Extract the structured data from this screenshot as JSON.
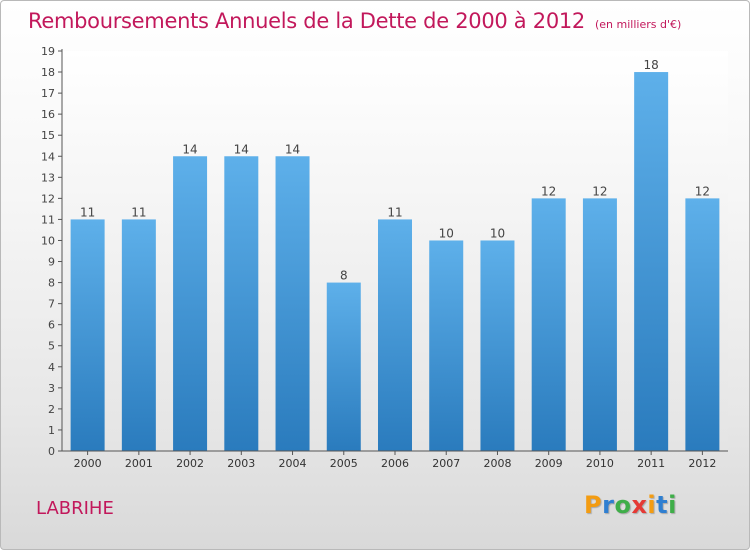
{
  "title": "Remboursements Annuels de la Dette de 2000 à 2012",
  "unit": "(en milliers d'€)",
  "commune": "LABRIHE",
  "brand": {
    "letters": [
      "P",
      "r",
      "o",
      "x",
      "i",
      "t",
      "i"
    ],
    "colors": [
      "#f39c12",
      "#2f7fd1",
      "#3fae49",
      "#e53935",
      "#f39c12",
      "#2f7fd1",
      "#3fae49"
    ]
  },
  "chart_data": {
    "type": "bar",
    "categories": [
      "2000",
      "2001",
      "2002",
      "2003",
      "2004",
      "2005",
      "2006",
      "2007",
      "2008",
      "2009",
      "2010",
      "2011",
      "2012"
    ],
    "values": [
      11,
      11,
      14,
      14,
      14,
      8,
      11,
      10,
      10,
      12,
      12,
      18,
      12
    ],
    "title": "Remboursements Annuels de la Dette de 2000 à 2012",
    "xlabel": "",
    "ylabel": "",
    "ylim": [
      0,
      19
    ],
    "yticks": [
      "0",
      "1",
      "2",
      "3",
      "4",
      "5",
      "6",
      "7",
      "8",
      "9",
      "10",
      "11",
      "12",
      "13",
      "14",
      "15",
      "16",
      "17",
      "18",
      "19"
    ],
    "grid": false,
    "legend": "none",
    "bar_color_top": "#5eb0ea",
    "bar_color_bottom": "#2a7bbd"
  }
}
